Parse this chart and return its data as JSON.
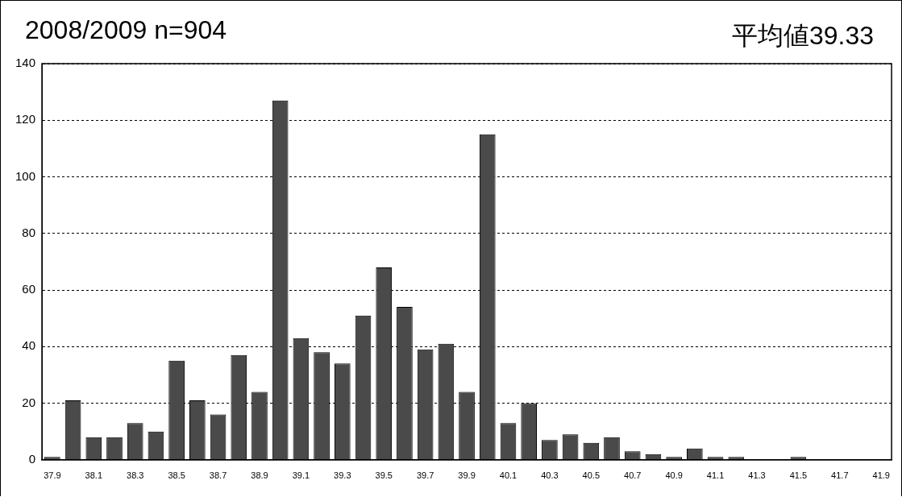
{
  "chart_data": {
    "type": "bar",
    "title": "2008/2009 n=904",
    "annotations": [
      "平均値39.33"
    ],
    "categories": [
      "37.9",
      null,
      "38.1",
      null,
      "38.3",
      null,
      "38.5",
      null,
      "38.7",
      null,
      "38.9",
      null,
      "39.1",
      null,
      "39.3",
      null,
      "39.5",
      null,
      "39.7",
      null,
      "39.9",
      null,
      "40.1",
      null,
      "40.3",
      null,
      "40.5",
      null,
      "40.7",
      null,
      "40.9",
      null,
      "41.1",
      null,
      "41.3",
      null,
      "41.5",
      null,
      "41.7",
      null,
      "41.9"
    ],
    "values": [
      1,
      21,
      8,
      8,
      13,
      10,
      35,
      21,
      16,
      37,
      24,
      127,
      43,
      38,
      34,
      51,
      68,
      54,
      39,
      41,
      24,
      115,
      13,
      20,
      7,
      9,
      6,
      8,
      3,
      2,
      1,
      4,
      1,
      1,
      0,
      0,
      1,
      0,
      0,
      0,
      0
    ],
    "color": "#4a4a4a",
    "ylim": [
      0,
      140
    ],
    "yticks": [
      0,
      20,
      40,
      60,
      80,
      100,
      120,
      140
    ],
    "grid": "y"
  }
}
